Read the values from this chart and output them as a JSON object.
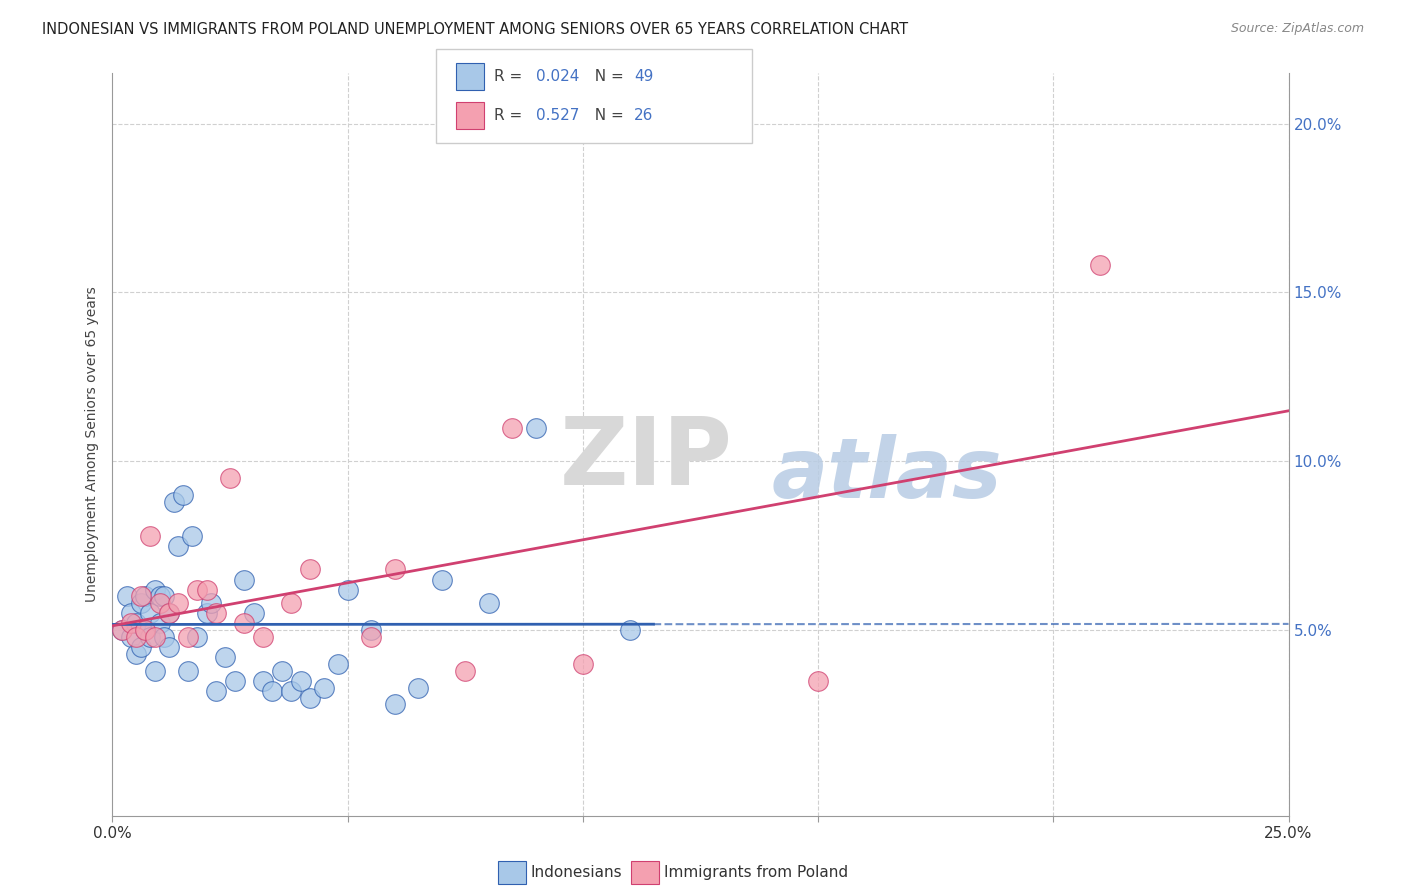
{
  "title": "INDONESIAN VS IMMIGRANTS FROM POLAND UNEMPLOYMENT AMONG SENIORS OVER 65 YEARS CORRELATION CHART",
  "source": "Source: ZipAtlas.com",
  "ylabel": "Unemployment Among Seniors over 65 years",
  "ytick_labels": [
    "5.0%",
    "10.0%",
    "15.0%",
    "20.0%"
  ],
  "ytick_values": [
    0.05,
    0.1,
    0.15,
    0.2
  ],
  "xlim": [
    0.0,
    0.25
  ],
  "ylim": [
    -0.005,
    0.215
  ],
  "indonesian_R": 0.024,
  "indonesian_N": 49,
  "poland_R": 0.527,
  "poland_N": 26,
  "indonesian_color": "#a8c8e8",
  "poland_color": "#f4a0b0",
  "indonesian_line_color": "#3060b0",
  "poland_line_color": "#d04070",
  "indo_line_x": [
    0.0,
    0.115
  ],
  "indo_line_y": [
    0.044,
    0.051
  ],
  "pol_line_x": [
    0.0,
    0.25
  ],
  "pol_line_y": [
    0.03,
    0.135
  ],
  "indonesian_x": [
    0.002,
    0.003,
    0.004,
    0.004,
    0.005,
    0.005,
    0.006,
    0.006,
    0.007,
    0.007,
    0.008,
    0.008,
    0.009,
    0.009,
    0.01,
    0.01,
    0.011,
    0.011,
    0.012,
    0.012,
    0.013,
    0.014,
    0.015,
    0.016,
    0.017,
    0.018,
    0.02,
    0.021,
    0.022,
    0.024,
    0.026,
    0.028,
    0.03,
    0.032,
    0.034,
    0.036,
    0.038,
    0.04,
    0.042,
    0.045,
    0.048,
    0.05,
    0.055,
    0.06,
    0.065,
    0.07,
    0.08,
    0.09,
    0.11
  ],
  "indonesian_y": [
    0.05,
    0.06,
    0.055,
    0.048,
    0.052,
    0.043,
    0.058,
    0.045,
    0.06,
    0.05,
    0.055,
    0.048,
    0.062,
    0.038,
    0.06,
    0.052,
    0.06,
    0.048,
    0.055,
    0.045,
    0.088,
    0.075,
    0.09,
    0.038,
    0.078,
    0.048,
    0.055,
    0.058,
    0.032,
    0.042,
    0.035,
    0.065,
    0.055,
    0.035,
    0.032,
    0.038,
    0.032,
    0.035,
    0.03,
    0.033,
    0.04,
    0.062,
    0.05,
    0.028,
    0.033,
    0.065,
    0.058,
    0.11,
    0.05
  ],
  "poland_x": [
    0.002,
    0.004,
    0.005,
    0.006,
    0.007,
    0.008,
    0.009,
    0.01,
    0.012,
    0.014,
    0.016,
    0.018,
    0.02,
    0.022,
    0.025,
    0.028,
    0.032,
    0.038,
    0.042,
    0.055,
    0.06,
    0.075,
    0.085,
    0.1,
    0.15,
    0.21
  ],
  "poland_y": [
    0.05,
    0.052,
    0.048,
    0.06,
    0.05,
    0.078,
    0.048,
    0.058,
    0.055,
    0.058,
    0.048,
    0.062,
    0.062,
    0.055,
    0.095,
    0.052,
    0.048,
    0.058,
    0.068,
    0.048,
    0.068,
    0.038,
    0.11,
    0.04,
    0.035,
    0.158
  ],
  "watermark_zip": "ZIP",
  "watermark_atlas": "atlas",
  "background_color": "#ffffff",
  "grid_color": "#d0d0d0",
  "axis_color": "#999999"
}
